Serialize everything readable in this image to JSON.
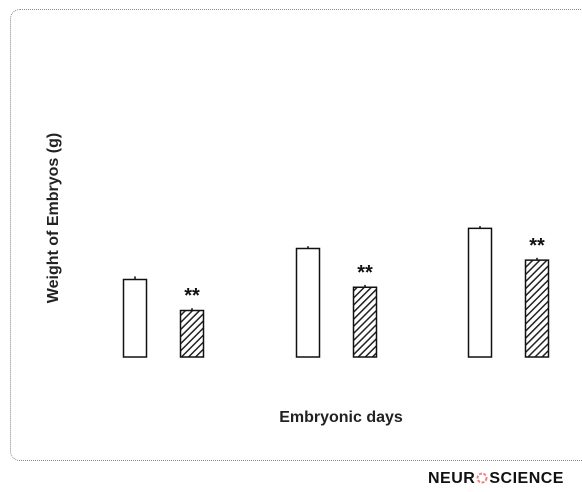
{
  "chart_data": {
    "type": "bar",
    "categories": [
      "",
      "",
      ""
    ],
    "series": [
      {
        "values": [
          10.0,
          14.0,
          16.6
        ],
        "errors": [
          0.4,
          0.3,
          0.3
        ],
        "pattern": "open",
        "color": "#ffffff"
      },
      {
        "values": [
          6.0,
          9.0,
          12.5
        ],
        "errors": [
          0.3,
          0.3,
          0.3
        ],
        "pattern": "hatched",
        "color": "#222222",
        "annotations": [
          "**",
          "**",
          "**"
        ]
      }
    ],
    "title": "",
    "xlabel": "Embryonic days",
    "ylabel": "Weight of Embryos (g)",
    "ylim": [
      0,
      45
    ],
    "grid": false,
    "legend": "none"
  },
  "watermark": {
    "text": "NEUROSCIENCE",
    "left": "NEUR",
    "right": "SCIENCE",
    "logo_icon": "brain-o-icon",
    "logo_color": "#f08080"
  }
}
